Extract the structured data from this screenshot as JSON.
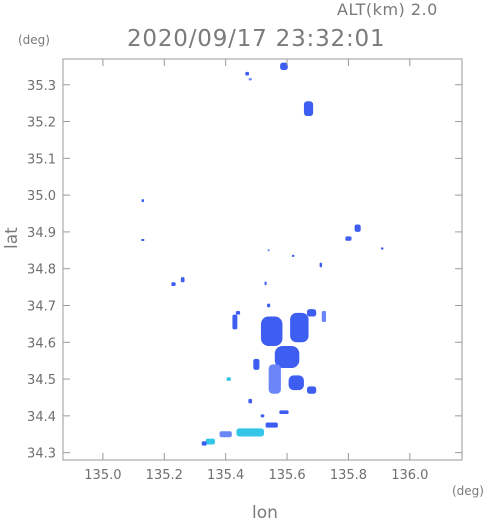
{
  "header": {
    "altitude": "ALT(km)  2.0",
    "timestamp": "2020/09/17 23:32:01"
  },
  "axes": {
    "x_title": "lon",
    "y_title": "lat",
    "x_unit": "(deg)",
    "y_unit": "(deg)"
  },
  "chart_data": {
    "type": "scatter",
    "xlim": [
      134.87,
      136.17
    ],
    "ylim": [
      34.28,
      35.37
    ],
    "x_ticks": [
      135.0,
      135.2,
      135.4,
      135.6,
      135.8,
      136.0
    ],
    "x_tick_labels": [
      "135.0",
      "135.2",
      "135.4",
      "135.6",
      "135.8",
      "136.0"
    ],
    "y_ticks": [
      34.3,
      34.4,
      34.5,
      34.6,
      34.7,
      34.8,
      34.9,
      35.0,
      35.1,
      35.2,
      35.3
    ],
    "y_tick_labels": [
      "34.3",
      "34.4",
      "34.5",
      "34.6",
      "34.7",
      "34.8",
      "34.9",
      "35.0",
      "35.1",
      "35.2",
      "35.3"
    ],
    "grid": false,
    "colors": {
      "echo_blue": "#3d5ef0",
      "echo_light": "#6a86f7",
      "echo_cyan": "#33c6e8",
      "frame": "#9a9a9a"
    },
    "echoes": [
      {
        "lon": 135.59,
        "lat": 35.35,
        "w": 0.025,
        "h": 0.02,
        "c": "echo_blue"
      },
      {
        "lon": 135.47,
        "lat": 35.33,
        "w": 0.012,
        "h": 0.01,
        "c": "echo_blue"
      },
      {
        "lon": 135.48,
        "lat": 35.315,
        "w": 0.01,
        "h": 0.006,
        "c": "echo_light"
      },
      {
        "lon": 135.67,
        "lat": 35.235,
        "w": 0.03,
        "h": 0.04,
        "c": "echo_blue"
      },
      {
        "lon": 135.13,
        "lat": 34.985,
        "w": 0.008,
        "h": 0.008,
        "c": "echo_blue"
      },
      {
        "lon": 135.13,
        "lat": 34.878,
        "w": 0.01,
        "h": 0.005,
        "c": "echo_blue"
      },
      {
        "lon": 135.83,
        "lat": 34.91,
        "w": 0.02,
        "h": 0.02,
        "c": "echo_blue"
      },
      {
        "lon": 135.8,
        "lat": 34.882,
        "w": 0.02,
        "h": 0.012,
        "c": "echo_blue"
      },
      {
        "lon": 135.91,
        "lat": 34.855,
        "w": 0.008,
        "h": 0.006,
        "c": "echo_blue"
      },
      {
        "lon": 135.62,
        "lat": 34.835,
        "w": 0.008,
        "h": 0.006,
        "c": "echo_blue"
      },
      {
        "lon": 135.54,
        "lat": 34.85,
        "w": 0.005,
        "h": 0.005,
        "c": "echo_light"
      },
      {
        "lon": 135.26,
        "lat": 34.77,
        "w": 0.012,
        "h": 0.014,
        "c": "echo_blue"
      },
      {
        "lon": 135.23,
        "lat": 34.758,
        "w": 0.014,
        "h": 0.01,
        "c": "echo_blue"
      },
      {
        "lon": 135.53,
        "lat": 34.76,
        "w": 0.006,
        "h": 0.01,
        "c": "echo_blue"
      },
      {
        "lon": 135.71,
        "lat": 34.81,
        "w": 0.008,
        "h": 0.012,
        "c": "echo_blue"
      },
      {
        "lon": 135.54,
        "lat": 34.7,
        "w": 0.01,
        "h": 0.01,
        "c": "echo_blue"
      },
      {
        "lon": 135.44,
        "lat": 34.68,
        "w": 0.014,
        "h": 0.01,
        "c": "echo_blue"
      },
      {
        "lon": 135.43,
        "lat": 34.655,
        "w": 0.016,
        "h": 0.04,
        "c": "echo_blue"
      },
      {
        "lon": 135.55,
        "lat": 34.63,
        "w": 0.07,
        "h": 0.08,
        "c": "echo_blue"
      },
      {
        "lon": 135.64,
        "lat": 34.64,
        "w": 0.06,
        "h": 0.08,
        "c": "echo_blue"
      },
      {
        "lon": 135.68,
        "lat": 34.68,
        "w": 0.03,
        "h": 0.02,
        "c": "echo_blue"
      },
      {
        "lon": 135.72,
        "lat": 34.67,
        "w": 0.014,
        "h": 0.03,
        "c": "echo_light"
      },
      {
        "lon": 135.6,
        "lat": 34.56,
        "w": 0.08,
        "h": 0.06,
        "c": "echo_blue"
      },
      {
        "lon": 135.56,
        "lat": 34.5,
        "w": 0.04,
        "h": 0.08,
        "c": "echo_light"
      },
      {
        "lon": 135.63,
        "lat": 34.49,
        "w": 0.05,
        "h": 0.04,
        "c": "echo_blue"
      },
      {
        "lon": 135.68,
        "lat": 34.47,
        "w": 0.03,
        "h": 0.02,
        "c": "echo_blue"
      },
      {
        "lon": 135.5,
        "lat": 34.54,
        "w": 0.02,
        "h": 0.03,
        "c": "echo_blue"
      },
      {
        "lon": 135.41,
        "lat": 34.5,
        "w": 0.014,
        "h": 0.01,
        "c": "echo_cyan"
      },
      {
        "lon": 135.48,
        "lat": 34.44,
        "w": 0.012,
        "h": 0.012,
        "c": "echo_blue"
      },
      {
        "lon": 135.59,
        "lat": 34.41,
        "w": 0.03,
        "h": 0.01,
        "c": "echo_blue"
      },
      {
        "lon": 135.52,
        "lat": 34.4,
        "w": 0.012,
        "h": 0.008,
        "c": "echo_blue"
      },
      {
        "lon": 135.55,
        "lat": 34.375,
        "w": 0.04,
        "h": 0.014,
        "c": "echo_blue"
      },
      {
        "lon": 135.48,
        "lat": 34.355,
        "w": 0.09,
        "h": 0.022,
        "c": "echo_cyan"
      },
      {
        "lon": 135.4,
        "lat": 34.35,
        "w": 0.04,
        "h": 0.016,
        "c": "echo_light"
      },
      {
        "lon": 135.35,
        "lat": 34.33,
        "w": 0.03,
        "h": 0.016,
        "c": "echo_cyan"
      },
      {
        "lon": 135.33,
        "lat": 34.325,
        "w": 0.016,
        "h": 0.012,
        "c": "echo_blue"
      }
    ]
  }
}
